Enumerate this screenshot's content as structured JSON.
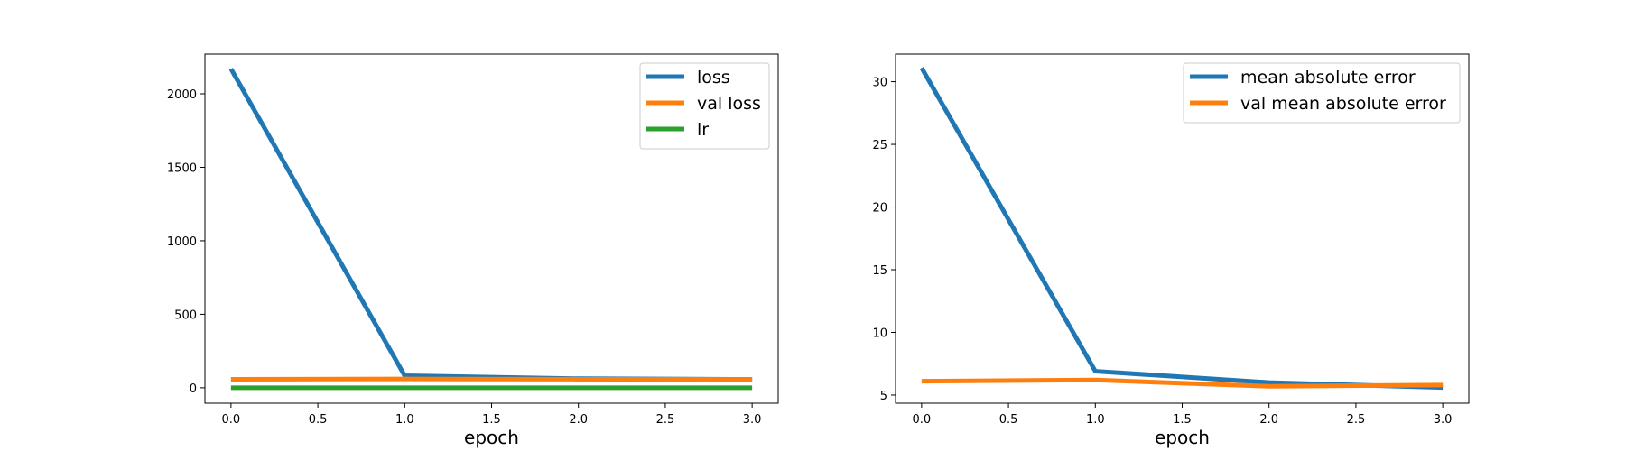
{
  "chart_data": [
    {
      "type": "line",
      "title": "",
      "xlabel": "epoch",
      "ylabel": "",
      "xlim": [
        -0.15,
        3.15
      ],
      "ylim": [
        -105,
        2270
      ],
      "xticks": [
        0.0,
        0.5,
        1.0,
        1.5,
        2.0,
        2.5,
        3.0
      ],
      "xtick_labels": [
        "0.0",
        "0.5",
        "1.0",
        "1.5",
        "2.0",
        "2.5",
        "3.0"
      ],
      "yticks": [
        0,
        500,
        1000,
        1500,
        2000
      ],
      "ytick_labels": [
        "0",
        "500",
        "1000",
        "1500",
        "2000"
      ],
      "grid": false,
      "legend_position": "top-right",
      "x": [
        0,
        1,
        2,
        3
      ],
      "series": [
        {
          "name": "loss",
          "color": "#1f77b4",
          "values": [
            2170,
            82,
            62,
            57
          ]
        },
        {
          "name": "val loss",
          "color": "#ff7f0e",
          "values": [
            58,
            60,
            58,
            57
          ]
        },
        {
          "name": "lr",
          "color": "#2ca02c",
          "values": [
            0.001,
            0.001,
            0.001,
            0.001
          ]
        }
      ]
    },
    {
      "type": "line",
      "title": "",
      "xlabel": "epoch",
      "ylabel": "",
      "xlim": [
        -0.15,
        3.15
      ],
      "ylim": [
        4.35,
        32.2
      ],
      "xticks": [
        0.0,
        0.5,
        1.0,
        1.5,
        2.0,
        2.5,
        3.0
      ],
      "xtick_labels": [
        "0.0",
        "0.5",
        "1.0",
        "1.5",
        "2.0",
        "2.5",
        "3.0"
      ],
      "yticks": [
        5,
        10,
        15,
        20,
        25,
        30
      ],
      "ytick_labels": [
        "5",
        "10",
        "15",
        "20",
        "25",
        "30"
      ],
      "grid": false,
      "legend_position": "top-right",
      "x": [
        0,
        1,
        2,
        3
      ],
      "series": [
        {
          "name": "mean absolute error",
          "color": "#1f77b4",
          "values": [
            31.1,
            6.9,
            6.0,
            5.6
          ]
        },
        {
          "name": "val mean absolute error",
          "color": "#ff7f0e",
          "values": [
            6.1,
            6.2,
            5.7,
            5.8
          ]
        }
      ]
    }
  ]
}
